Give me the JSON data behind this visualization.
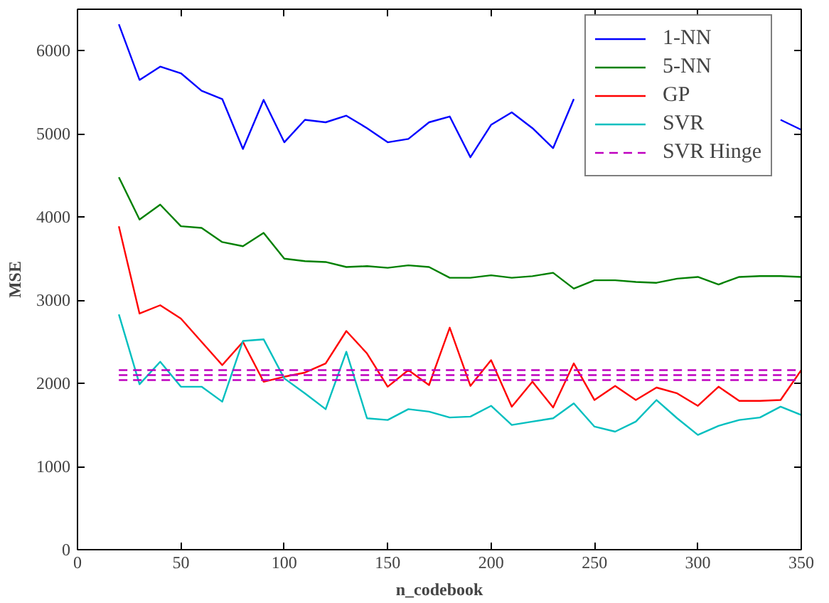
{
  "chart_data": {
    "type": "line",
    "xlabel": "n_codebook",
    "ylabel": "MSE",
    "x": [
      20,
      30,
      40,
      50,
      60,
      70,
      80,
      90,
      100,
      110,
      120,
      130,
      140,
      150,
      160,
      170,
      180,
      190,
      200,
      210,
      220,
      230,
      240,
      250,
      260,
      270,
      280,
      290,
      300,
      310,
      320,
      330,
      340,
      350
    ],
    "xlim": [
      0,
      350
    ],
    "xticks": [
      0,
      50,
      100,
      150,
      200,
      250,
      300,
      350
    ],
    "ylim": [
      0,
      6500
    ],
    "yticks": [
      0,
      1000,
      2000,
      3000,
      4000,
      5000,
      6000
    ],
    "grid": false,
    "legend": "top right",
    "line_style": "solid",
    "marker": "none",
    "series": [
      {
        "name": "1-NN",
        "color": "#0000ff",
        "values": [
          6320,
          5650,
          5810,
          5730,
          5520,
          5420,
          4820,
          5410,
          4900,
          5170,
          5140,
          5220,
          5070,
          4900,
          4940,
          5140,
          5210,
          4720,
          5110,
          5260,
          5070,
          4830,
          5420,
          null,
          null,
          null,
          null,
          null,
          null,
          null,
          null,
          null,
          5170,
          5050
        ]
      },
      {
        "name": "5-NN",
        "color": "#008000",
        "values": [
          4480,
          3970,
          4150,
          3890,
          3870,
          3700,
          3650,
          3810,
          3500,
          3470,
          3460,
          3400,
          3410,
          3390,
          3420,
          3400,
          3270,
          3270,
          3300,
          3270,
          3290,
          3330,
          3140,
          3240,
          3240,
          3220,
          3210,
          3260,
          3280,
          3190,
          3280,
          3290,
          3290,
          3280
        ]
      },
      {
        "name": "GP",
        "color": "#ff0000",
        "values": [
          3890,
          2840,
          2940,
          2780,
          2500,
          2220,
          2500,
          2020,
          2080,
          2130,
          2240,
          2630,
          2360,
          1960,
          2160,
          1980,
          2670,
          1970,
          2280,
          1720,
          2020,
          1710,
          2240,
          1800,
          1970,
          1800,
          1950,
          1880,
          1730,
          1960,
          1790,
          1790,
          1800,
          2160
        ]
      },
      {
        "name": "SVR",
        "color": "#00bfbf",
        "values": [
          2830,
          1990,
          2260,
          1960,
          1960,
          1780,
          2510,
          2530,
          2060,
          1880,
          1690,
          2380,
          1580,
          1560,
          1690,
          1660,
          1590,
          1600,
          1730,
          1500,
          1540,
          1580,
          1760,
          1480,
          1420,
          1540,
          1800,
          1580,
          1380,
          1490,
          1560,
          1590,
          1720,
          1620
        ]
      },
      {
        "name": "SVR Hinge",
        "color": "#bf00bf",
        "line_style": "dashed",
        "values": [
          2160,
          2160,
          2160,
          2160,
          2160,
          2160,
          2160,
          2160,
          2160,
          2160,
          2160,
          2160,
          2160,
          2160,
          2160,
          2160,
          2160,
          2160,
          2160,
          2160,
          2160,
          2160,
          2160,
          2160,
          2160,
          2160,
          2160,
          2160,
          2160,
          2160,
          2160,
          2160,
          2160,
          2160
        ]
      },
      {
        "color": "#bf00bf",
        "line_style": "dashed",
        "values": [
          2100,
          2100,
          2100,
          2100,
          2100,
          2100,
          2100,
          2100,
          2100,
          2100,
          2100,
          2100,
          2100,
          2100,
          2100,
          2100,
          2100,
          2100,
          2100,
          2100,
          2100,
          2100,
          2100,
          2100,
          2100,
          2100,
          2100,
          2100,
          2100,
          2100,
          2100,
          2100,
          2100,
          2100
        ]
      },
      {
        "color": "#bf00bf",
        "line_style": "dashed",
        "values": [
          2040,
          2040,
          2040,
          2040,
          2040,
          2040,
          2040,
          2040,
          2040,
          2040,
          2040,
          2040,
          2040,
          2040,
          2040,
          2040,
          2040,
          2040,
          2040,
          2040,
          2040,
          2040,
          2040,
          2040,
          2040,
          2040,
          2040,
          2040,
          2040,
          2040,
          2040,
          2040,
          2040,
          2040
        ]
      }
    ]
  }
}
